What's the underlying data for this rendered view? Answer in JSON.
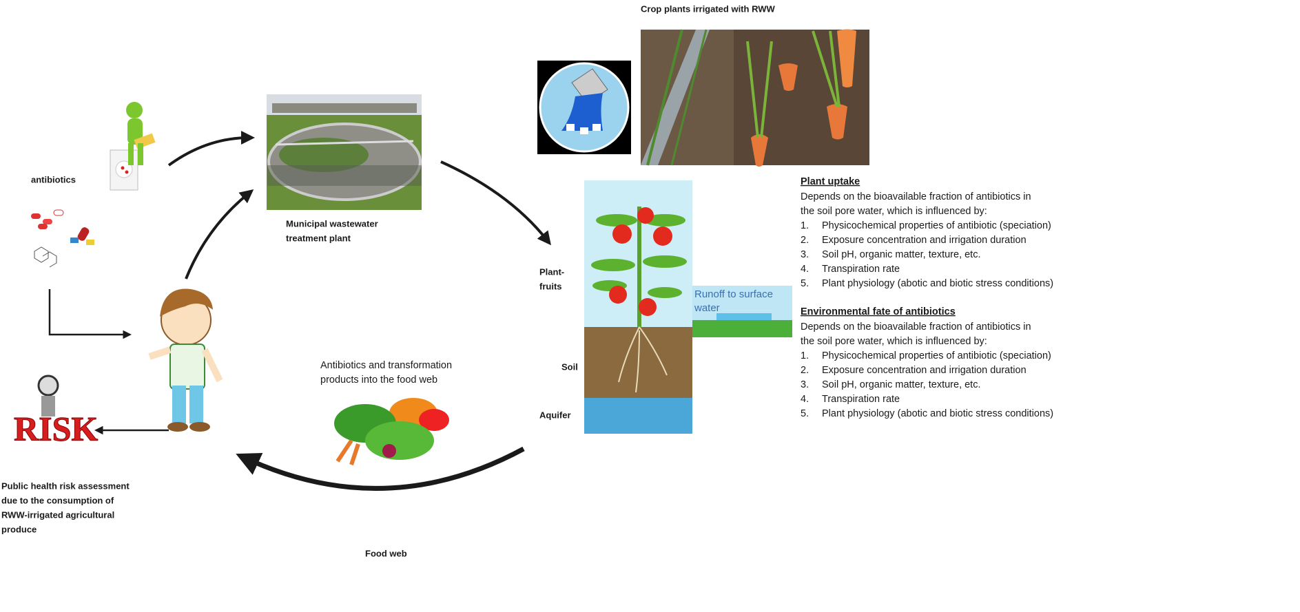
{
  "title": "Crop plants irrigated with RWW",
  "labels": {
    "antibiotics": "antibiotics",
    "wwtp": [
      "Municipal wastewater",
      "treatment plant"
    ],
    "plant_fruits": [
      "Plant-",
      "fruits"
    ],
    "soil": "Soil",
    "aquifer": "Aquifer",
    "runoff": [
      "Runoff to surface",
      "water"
    ],
    "food_web_note": [
      "Antibiotics and transformation",
      "products into the food web"
    ],
    "food_web": "Food web",
    "risk": "RISK",
    "risk_note": [
      "Public health risk assessment",
      "due to the consumption of",
      "RWW-irrigated agricultural",
      "produce"
    ]
  },
  "sections": [
    {
      "heading": "Plant uptake",
      "description": [
        "Depends on the bioavailable fraction of antibiotics in",
        "the soil pore water, which is influenced by:"
      ],
      "items": [
        {
          "number": "1.",
          "text": "Physicochemical properties of antibiotic (speciation)"
        },
        {
          "number": "2.",
          "text": "Exposure concentration and irrigation duration"
        },
        {
          "number": "3.",
          "text": "Soil pH, organic matter, texture, etc."
        },
        {
          "number": "4.",
          "text": "Transpiration rate"
        },
        {
          "number": "5.",
          "text": "Plant physiology (abotic and biotic stress conditions)"
        }
      ]
    },
    {
      "heading": "Environmental fate of antibiotics",
      "description": [
        "Depends on the bioavailable fraction of antibiotics in",
        "the soil pore water, which is influenced by:"
      ],
      "items": [
        {
          "number": "1.",
          "text": "Physicochemical properties of antibiotic (speciation)"
        },
        {
          "number": "2.",
          "text": "Exposure concentration and irrigation duration"
        },
        {
          "number": "3.",
          "text": "Soil pH, organic matter, texture, etc."
        },
        {
          "number": "4.",
          "text": "Transpiration rate"
        },
        {
          "number": "5.",
          "text": "Plant physiology (abotic and biotic stress conditions)"
        }
      ]
    }
  ]
}
